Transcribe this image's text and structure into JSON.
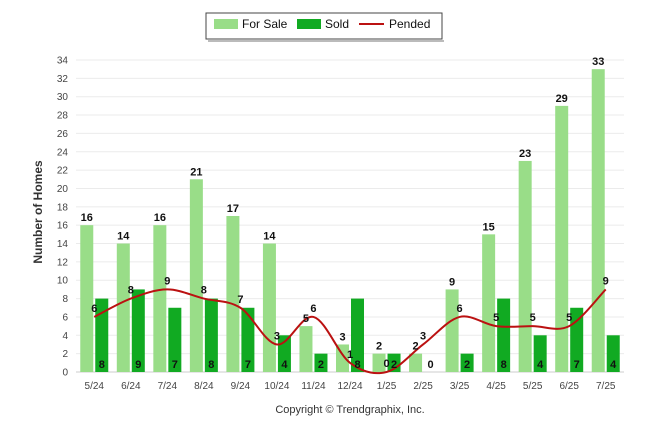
{
  "chart_data": {
    "type": "bar",
    "categories": [
      "5/24",
      "6/24",
      "7/24",
      "8/24",
      "9/24",
      "10/24",
      "11/24",
      "12/24",
      "1/25",
      "2/25",
      "3/25",
      "4/25",
      "5/25",
      "6/25",
      "7/25"
    ],
    "series": [
      {
        "name": "For Sale",
        "type": "bar",
        "color": "#99dd88",
        "values": [
          16,
          14,
          16,
          21,
          17,
          14,
          5,
          3,
          2,
          2,
          9,
          15,
          23,
          29,
          33
        ]
      },
      {
        "name": "Sold",
        "type": "bar",
        "color": "#11aa22",
        "values": [
          8,
          9,
          7,
          8,
          7,
          4,
          2,
          8,
          2,
          0,
          2,
          8,
          4,
          7,
          4
        ]
      },
      {
        "name": "Pended",
        "type": "line",
        "color": "#bb1111",
        "values": [
          6,
          8,
          9,
          8,
          7,
          3,
          6,
          1,
          0,
          3,
          6,
          5,
          5,
          5,
          9
        ]
      }
    ],
    "ylabel": "Number of Homes",
    "ylim": [
      0,
      34
    ],
    "yticks": [
      0,
      2,
      4,
      6,
      8,
      10,
      12,
      14,
      16,
      18,
      20,
      22,
      24,
      26,
      28,
      30,
      32,
      34
    ],
    "grid": true,
    "legend_position": "top-center",
    "copyright": "Copyright © Trendgraphix, Inc."
  }
}
